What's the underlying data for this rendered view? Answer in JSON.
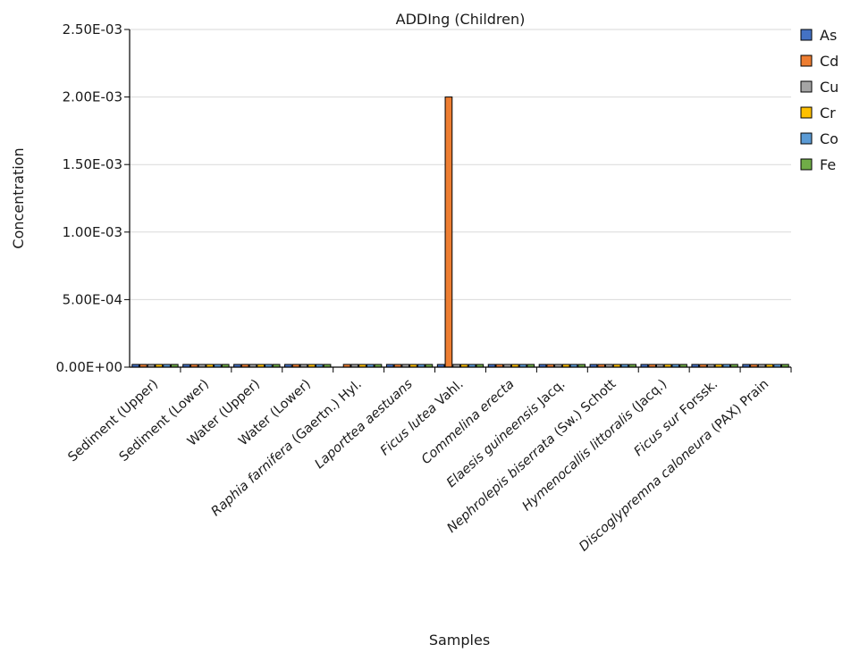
{
  "chart_data": {
    "type": "bar",
    "title": "ADDIng (Children)",
    "xlabel": "Samples",
    "ylabel": "Concentration",
    "ylim": [
      0,
      0.0025
    ],
    "yticks": [
      0,
      0.0005,
      0.001,
      0.0015,
      0.002,
      0.0025
    ],
    "ytick_labels": [
      "0.00E+00",
      "5.00E-04",
      "1.00E-03",
      "1.50E-03",
      "2.00E-03",
      "2.50E-03"
    ],
    "grid": true,
    "legend_position": "right",
    "categories": [
      [
        {
          "t": "Sediment (Upper)",
          "i": false
        }
      ],
      [
        {
          "t": "Sediment (Lower)",
          "i": false
        }
      ],
      [
        {
          "t": "Water (Upper)",
          "i": false
        }
      ],
      [
        {
          "t": "Water (Lower)",
          "i": false
        }
      ],
      [
        {
          "t": "Raphia farnifera",
          "i": true
        },
        {
          "t": " (Gaertn.) Hyl.",
          "i": false
        }
      ],
      [
        {
          "t": "Laporttea aestuans",
          "i": true
        }
      ],
      [
        {
          "t": "Ficus lutea",
          "i": true
        },
        {
          "t": " Vahl.",
          "i": false
        }
      ],
      [
        {
          "t": "Commelina erecta",
          "i": true
        }
      ],
      [
        {
          "t": "Elaesis guineensis",
          "i": true
        },
        {
          "t": " Jacq.",
          "i": false
        }
      ],
      [
        {
          "t": "Nephrolepis biserrata",
          "i": true
        },
        {
          "t": " (Sw.) Schott",
          "i": false
        }
      ],
      [
        {
          "t": "Hymenocallis littoralis",
          "i": true
        },
        {
          "t": " (Jacq.)",
          "i": false
        }
      ],
      [
        {
          "t": "Ficus sur",
          "i": true
        },
        {
          "t": " Forssk.",
          "i": false
        }
      ],
      [
        {
          "t": "Discoglypremna caloneura",
          "i": true
        },
        {
          "t": " (PAX) Prain",
          "i": false
        }
      ]
    ],
    "series": [
      {
        "name": "As",
        "color": "#4472c4",
        "values": [
          2e-05,
          2e-05,
          2e-05,
          2e-05,
          0,
          2e-05,
          2e-05,
          2e-05,
          2e-05,
          2e-05,
          2e-05,
          2e-05,
          2e-05
        ]
      },
      {
        "name": "Cd",
        "color": "#ed7d31",
        "values": [
          2e-05,
          2e-05,
          2e-05,
          2e-05,
          2e-05,
          2e-05,
          0.002,
          2e-05,
          2e-05,
          2e-05,
          2e-05,
          2e-05,
          2e-05
        ]
      },
      {
        "name": "Cu",
        "color": "#a5a5a5",
        "values": [
          2e-05,
          2e-05,
          2e-05,
          2e-05,
          2e-05,
          2e-05,
          2e-05,
          2e-05,
          2e-05,
          2e-05,
          2e-05,
          2e-05,
          2e-05
        ]
      },
      {
        "name": "Cr",
        "color": "#ffc000",
        "values": [
          2e-05,
          2e-05,
          2e-05,
          2e-05,
          2e-05,
          2e-05,
          2e-05,
          2e-05,
          2e-05,
          2e-05,
          2e-05,
          2e-05,
          2e-05
        ]
      },
      {
        "name": "Co",
        "color": "#5b9bd5",
        "values": [
          2e-05,
          2e-05,
          2e-05,
          2e-05,
          2e-05,
          2e-05,
          2e-05,
          2e-05,
          2e-05,
          2e-05,
          2e-05,
          2e-05,
          2e-05
        ]
      },
      {
        "name": "Fe",
        "color": "#70ad47",
        "values": [
          2e-05,
          2e-05,
          2e-05,
          2e-05,
          2e-05,
          2e-05,
          2e-05,
          2e-05,
          2e-05,
          2e-05,
          2e-05,
          2e-05,
          2e-05
        ]
      }
    ]
  }
}
